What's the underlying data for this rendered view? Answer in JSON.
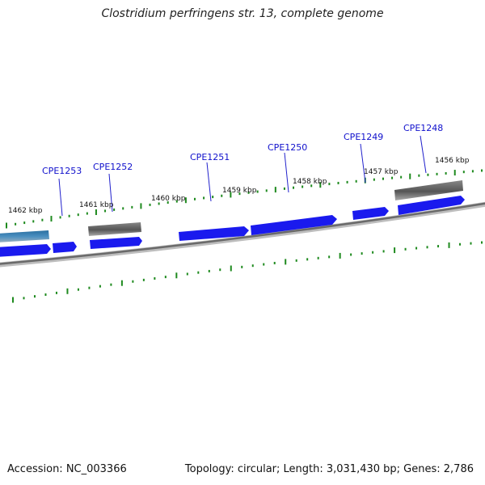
{
  "title": "Clostridium perfringens str. 13, complete genome",
  "footer": {
    "accession": "Accession: NC_003366",
    "stats": "Topology: circular; Length: 3,031,430 bp; Genes: 2,786"
  },
  "colors": {
    "cds": "#1a1aee",
    "gray_feature": "#5a5a5a",
    "tick": "#1e8a1e",
    "backbone": "#707070",
    "label": "#1010cc"
  },
  "genes": [
    {
      "name": "CPE1253"
    },
    {
      "name": "CPE1252"
    },
    {
      "name": "CPE1251"
    },
    {
      "name": "CPE1250"
    },
    {
      "name": "CPE1249"
    },
    {
      "name": "CPE1248"
    }
  ],
  "scale_labels": [
    "1462 kbp",
    "1461 kbp",
    "1460 kbp",
    "1459 kbp",
    "1458 kbp",
    "1457 kbp",
    "1456 kbp"
  ]
}
